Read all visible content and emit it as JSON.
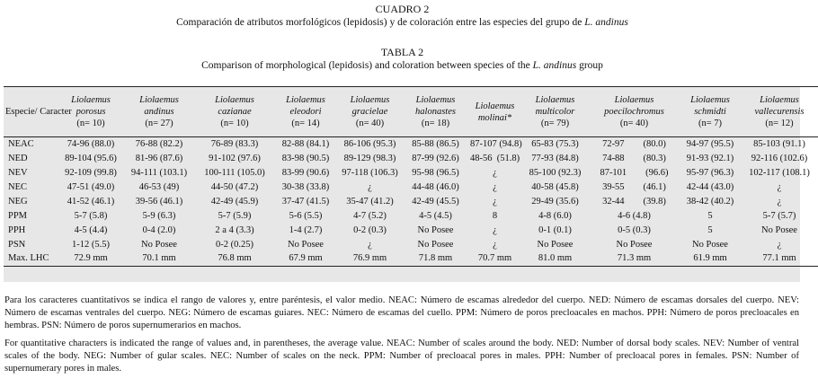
{
  "caption": {
    "cuadro_label": "CUADRO 2",
    "cuadro_text": "Comparación de atributos morfológicos (lepidosis) y de coloración entre las especies del grupo de",
    "cuadro_species": "L. andinus",
    "tabla_label": "TABLA 2",
    "tabla_text": "Comparison of morphological (lepidosis) and coloration between species of the",
    "tabla_species": "L. andinus",
    "tabla_suffix": "group"
  },
  "table": {
    "corner_header": "Especie/ Caracter",
    "species": [
      {
        "genus": "Liolaemus",
        "epithet": "porosus",
        "n": "(n= 10)"
      },
      {
        "genus": "Liolaemus",
        "epithet": "andinus",
        "n": "(n= 27)"
      },
      {
        "genus": "Liolaemus",
        "epithet": "cazianae",
        "n": "(n= 10)"
      },
      {
        "genus": "Liolaemus",
        "epithet": "eleodori",
        "n": "(n= 14)"
      },
      {
        "genus": "Liolaemus",
        "epithet": "gracielae",
        "n": "(n= 40)"
      },
      {
        "genus": "Liolaemus",
        "epithet": "halonastes",
        "n": "(n= 18)"
      },
      {
        "genus": "Liolaemus",
        "epithet": "molinai*",
        "n": ""
      },
      {
        "genus": "Liolaemus",
        "epithet": "multicolor",
        "n": "(n= 79)"
      },
      {
        "genus": "Liolaemus",
        "epithet": "poecilochromus",
        "n": "(n= 40)"
      },
      {
        "genus": "Liolaemus",
        "epithet": "schmidti",
        "n": "(n= 7)"
      },
      {
        "genus": "Liolaemus",
        "epithet": "vallecurensis",
        "n": "(n= 12)"
      }
    ],
    "rows": [
      {
        "label": "NEAC",
        "cells": [
          "74-96 (88.0)",
          "76-88 (82.2)",
          "76-89 (83.3)",
          "82-88 (84.1)",
          "86-106 (95.3)",
          "85-88 (86.5)",
          "87-107 (94.8)",
          "65-83 (75.3)",
          "72-97        (80.0)",
          "94-97 (95.5)",
          "85-103 (91.1)"
        ]
      },
      {
        "label": "NED",
        "cells": [
          "89-104 (95.6)",
          "81-96 (87.6)",
          "91-102 (97.6)",
          "83-98 (90.5)",
          "89-129 (98.3)",
          "87-99 (92.6)",
          "48-56  (51.8)",
          "77-93 (84.8)",
          "74-88        (80.3)",
          "91-93 (92.1)",
          "92-116 (102.6)"
        ]
      },
      {
        "label": "NEV",
        "cells": [
          "92-109 (99.8)",
          "94-111 (103.1)",
          "100-111 (105.0)",
          "83-99 (90.6)",
          "97-118 (106.3)",
          "95-98 (96.5)",
          "¿",
          "85-100 (92.3)",
          "87-101        (96.6)",
          "95-97 (96.3)",
          "102-117 (108.1)"
        ]
      },
      {
        "label": "NEC",
        "cells": [
          "47-51 (49.0)",
          "46-53 (49)",
          "44-50 (47.2)",
          "30-38 (33.8)",
          "¿",
          "44-48 (46.0)",
          "¿",
          "40-58 (45.8)",
          "39-55        (46.1)",
          "42-44 (43.0)",
          "¿"
        ]
      },
      {
        "label": "NEG",
        "cells": [
          "41-52 (46.1)",
          "39-56 (46.1)",
          "42-49 (45.9)",
          "37-47 (41.5)",
          "35-47 (41.2)",
          "42-49 (45.5)",
          "¿",
          "29-49 (35.6)",
          "32-44        (39.8)",
          "38-42 (40.2)",
          "¿"
        ]
      },
      {
        "label": "PPM",
        "cells": [
          "5-7 (5.8)",
          "5-9 (6.3)",
          "5-7 (5.9)",
          "5-6 (5.5)",
          "4-7 (5.2)",
          "4-5 (4.5)",
          "8",
          "4-8 (6.0)",
          "4-6 (4.8)",
          "5",
          "5-7 (5.7)"
        ]
      },
      {
        "label": "PPH",
        "cells": [
          "4-5 (4.4)",
          "0-4 (2.0)",
          "2 a 4 (3.3)",
          "1-4 (2.7)",
          "0-2 (0.3)",
          "No Posee",
          "¿",
          "0-1 (0.1)",
          "0-5 (0.3)",
          "5",
          "No Posee"
        ]
      },
      {
        "label": "PSN",
        "cells": [
          "1-12 (5.5)",
          "No Posee",
          "0-2 (0.25)",
          "No Posee",
          "¿",
          "No Posee",
          "¿",
          "No Posee",
          "No Posee",
          "No Posee",
          "¿"
        ]
      },
      {
        "label": "Max. LHC",
        "cells": [
          "72.9 mm",
          "70.1 mm",
          "76.8 mm",
          "67.9 mm",
          "76.9 mm",
          "71.8 mm",
          "70.7 mm",
          "81.0 mm",
          "71.3 mm",
          "61.9 mm",
          "77.1 mm"
        ]
      }
    ]
  },
  "notes": {
    "spanish": "Para los caracteres cuantitativos se indica el rango de valores y, entre paréntesis, el valor medio. NEAC: Número de escamas alrededor del cuerpo. NED: Número de escamas dorsales del cuerpo. NEV: Número de escamas ventrales del cuerpo. NEG: Número de escamas guiares. NEC: Número de escamas del cuello. PPM: Número de poros precloacales en machos. PPH: Número de poros precloacales en hembras. PSN: Número de poros supernumerarios en machos.",
    "english": "For quantitative characters is indicated the range of values and, in parentheses, the average value. NEAC: Number of scales around the body. NED: Number of dorsal body scales. NEV: Number of ventral scales of the body. NEG: Number of gular scales. NEC: Number of scales on the neck. PPM: Number of precloacal pores in males. PPH: Number of precloacal pores in females. PSN: Number of supernumerary pores in males."
  }
}
